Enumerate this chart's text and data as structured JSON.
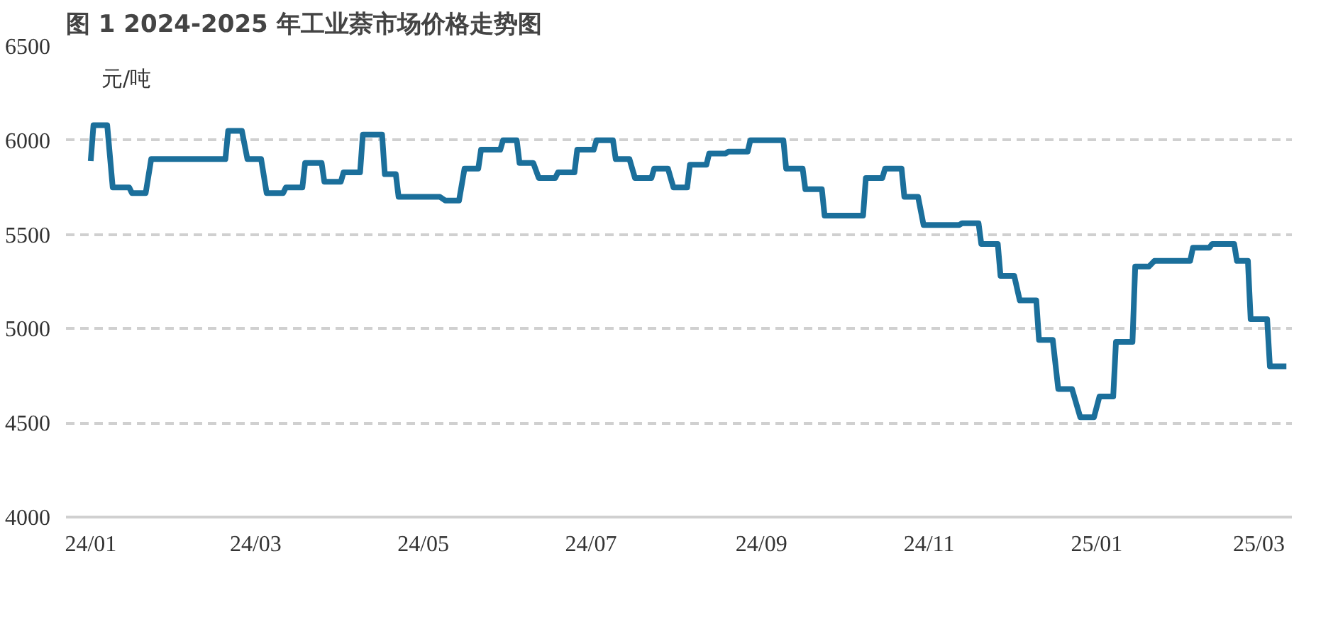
{
  "chart_data": {
    "type": "line",
    "title": "图 1 2024-2025 年工业萘市场价格走势图",
    "ylabel": "元/吨",
    "x": [
      "2024-01-01",
      "2024-01-02",
      "2024-01-07",
      "2024-01-09",
      "2024-01-15",
      "2024-01-16",
      "2024-01-21",
      "2024-01-23",
      "2024-02-19",
      "2024-02-20",
      "2024-02-25",
      "2024-02-27",
      "2024-03-03",
      "2024-03-05",
      "2024-03-11",
      "2024-03-12",
      "2024-03-18",
      "2024-03-19",
      "2024-03-25",
      "2024-03-26",
      "2024-04-01",
      "2024-04-02",
      "2024-04-08",
      "2024-04-09",
      "2024-04-16",
      "2024-04-17",
      "2024-04-21",
      "2024-04-22",
      "2024-05-07",
      "2024-05-09",
      "2024-05-14",
      "2024-05-16",
      "2024-05-21",
      "2024-05-22",
      "2024-05-29",
      "2024-05-30",
      "2024-06-04",
      "2024-06-05",
      "2024-06-10",
      "2024-06-12",
      "2024-06-18",
      "2024-06-19",
      "2024-06-25",
      "2024-06-26",
      "2024-07-02",
      "2024-07-03",
      "2024-07-09",
      "2024-07-10",
      "2024-07-15",
      "2024-07-17",
      "2024-07-23",
      "2024-07-24",
      "2024-07-29",
      "2024-07-31",
      "2024-08-05",
      "2024-08-06",
      "2024-08-12",
      "2024-08-13",
      "2024-08-19",
      "2024-08-20",
      "2024-08-27",
      "2024-08-28",
      "2024-09-09",
      "2024-09-10",
      "2024-09-16",
      "2024-09-17",
      "2024-09-23",
      "2024-09-24",
      "2024-10-08",
      "2024-10-09",
      "2024-10-15",
      "2024-10-16",
      "2024-10-22",
      "2024-10-23",
      "2024-10-28",
      "2024-10-30",
      "2024-11-12",
      "2024-11-13",
      "2024-11-19",
      "2024-11-20",
      "2024-11-26",
      "2024-11-27",
      "2024-12-02",
      "2024-12-04",
      "2024-12-10",
      "2024-12-11",
      "2024-12-16",
      "2024-12-18",
      "2024-12-23",
      "2024-12-26",
      "2024-12-31",
      "2025-01-02",
      "2025-01-07",
      "2025-01-08",
      "2025-01-14",
      "2025-01-15",
      "2025-01-20",
      "2025-01-22",
      "2025-02-04",
      "2025-02-05",
      "2025-02-11",
      "2025-02-12",
      "2025-02-20",
      "2025-02-21",
      "2025-02-25",
      "2025-02-26",
      "2025-03-04",
      "2025-03-05",
      "2025-03-11"
    ],
    "series": [
      {
        "color": "#1b6f9b",
        "values": [
          5890,
          6080,
          6080,
          5750,
          5750,
          5720,
          5720,
          5900,
          5900,
          6050,
          6050,
          5900,
          5900,
          5720,
          5720,
          5750,
          5750,
          5880,
          5880,
          5780,
          5780,
          5830,
          5830,
          6030,
          6030,
          5820,
          5820,
          5700,
          5700,
          5680,
          5680,
          5850,
          5850,
          5950,
          5950,
          6000,
          6000,
          5880,
          5880,
          5800,
          5800,
          5830,
          5830,
          5950,
          5950,
          6000,
          6000,
          5900,
          5900,
          5800,
          5800,
          5850,
          5850,
          5750,
          5750,
          5870,
          5870,
          5930,
          5930,
          5940,
          5940,
          6000,
          6000,
          5850,
          5850,
          5740,
          5740,
          5600,
          5600,
          5800,
          5800,
          5850,
          5850,
          5700,
          5700,
          5550,
          5550,
          5560,
          5560,
          5450,
          5450,
          5280,
          5280,
          5150,
          5150,
          4940,
          4940,
          4680,
          4680,
          4530,
          4530,
          4640,
          4640,
          4930,
          4930,
          5330,
          5330,
          5360,
          5360,
          5430,
          5430,
          5450,
          5450,
          5360,
          5360,
          5050,
          5050,
          4800,
          4800
        ]
      }
    ],
    "xlim": [
      "2023-12-23",
      "2025-03-13"
    ],
    "xticks": [
      {
        "value": "2024-01-01",
        "label": "24/01"
      },
      {
        "value": "2024-03-01",
        "label": "24/03"
      },
      {
        "value": "2024-05-01",
        "label": "24/05"
      },
      {
        "value": "2024-07-01",
        "label": "24/07"
      },
      {
        "value": "2024-09-01",
        "label": "24/09"
      },
      {
        "value": "2024-11-01",
        "label": "24/11"
      },
      {
        "value": "2025-01-01",
        "label": "25/01"
      },
      {
        "value": "2025-03-01",
        "label": "25/03"
      }
    ],
    "ylim": [
      4000,
      6500
    ],
    "yticks": [
      4000,
      4500,
      5000,
      5500,
      6000,
      6500
    ],
    "grid": "y",
    "marker": "none",
    "line_style": "solid"
  }
}
